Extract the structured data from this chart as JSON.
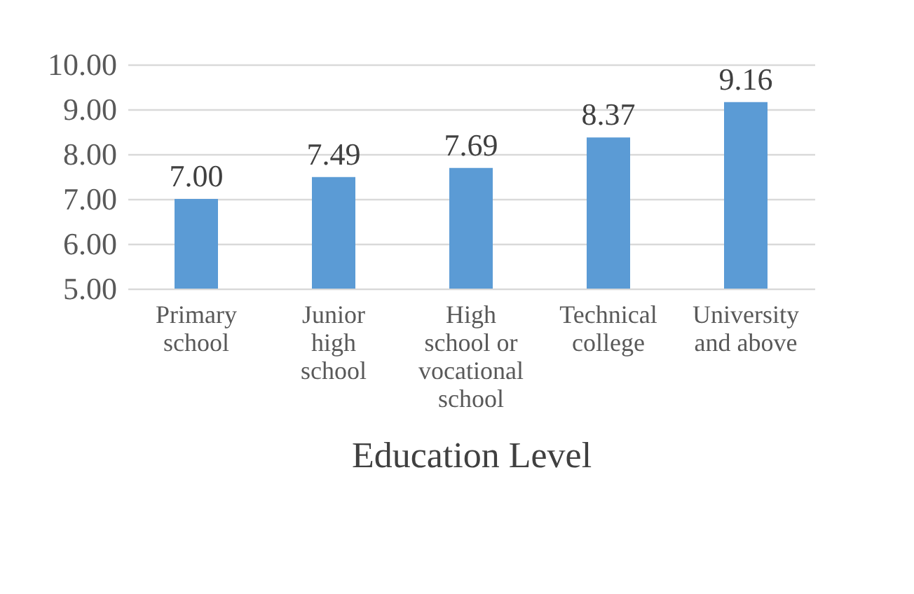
{
  "chart_data": {
    "type": "bar",
    "xlabel": "Education Level",
    "categories": [
      "Primary school",
      "Junior high school",
      "High school or vocational school",
      "Technical college",
      "University and above"
    ],
    "values": [
      7.0,
      7.49,
      7.69,
      8.37,
      9.16
    ],
    "value_labels": [
      "7.00",
      "7.49",
      "7.69",
      "8.37",
      "9.16"
    ],
    "color": "#5b9bd5",
    "ylim": [
      5,
      10
    ],
    "yticks": [
      {
        "value": 5,
        "label": "5.00"
      },
      {
        "value": 6,
        "label": "6.00"
      },
      {
        "value": 7,
        "label": "7.00"
      },
      {
        "value": 8,
        "label": "8.00"
      },
      {
        "value": 9,
        "label": "9.00"
      },
      {
        "value": 10,
        "label": "10.00"
      }
    ],
    "grid": "y"
  }
}
